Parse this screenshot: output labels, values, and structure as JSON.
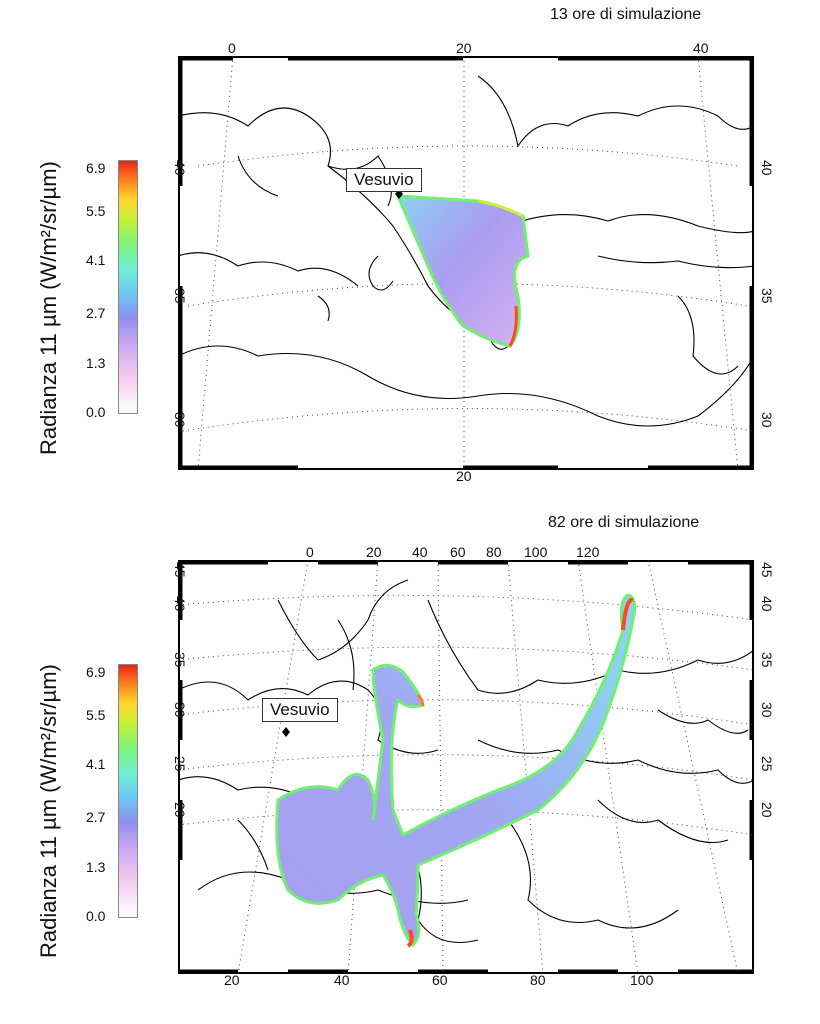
{
  "panels": [
    {
      "title": "13 ore di simulazione",
      "ylabel": "Radianza 11 µm (W/m²/sr/µm)",
      "colorbar_ticks": [
        "6.9",
        "5.5",
        "4.1",
        "2.7",
        "1.3",
        "0.0"
      ],
      "top_ticks": [
        "0",
        "20",
        "40"
      ],
      "bottom_ticks": [
        "20"
      ],
      "left_ticks": [
        "40",
        "35",
        "30"
      ],
      "right_ticks": [
        "40",
        "35",
        "30"
      ],
      "marker_label": "Vesuvio"
    },
    {
      "title": "82 ore di simulazione",
      "ylabel": "Radianza 11 µm (W/m²/sr/µm)",
      "colorbar_ticks": [
        "6.9",
        "5.5",
        "4.1",
        "2.7",
        "1.3",
        "0.0"
      ],
      "top_ticks": [
        "0",
        "20",
        "40",
        "60",
        "80",
        "100",
        "120"
      ],
      "bottom_ticks": [
        "20",
        "40",
        "60",
        "80",
        "100"
      ],
      "left_ticks": [
        "45",
        "40",
        "35",
        "30",
        "25",
        "20"
      ],
      "right_ticks": [
        "45",
        "40",
        "35",
        "30",
        "25",
        "20"
      ],
      "marker_label": "Vesuvio"
    }
  ],
  "colorscale": [
    "#ffffff",
    "#f3c8ef",
    "#c9a9f2",
    "#8e8ff0",
    "#6fc6f3",
    "#6ff0d6",
    "#7bf27a",
    "#c8f13a",
    "#ffd428",
    "#ff7a1f",
    "#e8241b"
  ]
}
